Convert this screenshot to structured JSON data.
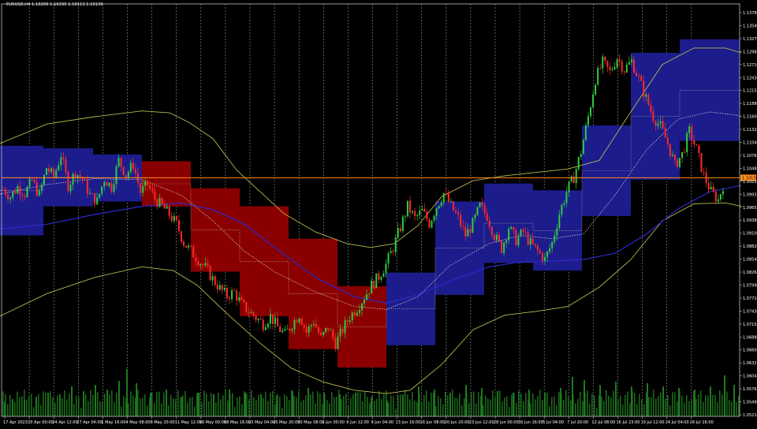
{
  "header": {
    "symbol_text": "EURUSD,H4  1.10206 1.10295 1.10113 1.10139"
  },
  "colors": {
    "background": "#000000",
    "frame": "#c0c0c0",
    "grid": "#9a9a9a",
    "bull_candle": "#2ecc40",
    "bear_candle": "#ff2a2a",
    "box_bull": "#1c1c8c",
    "box_bear": "#8a0000",
    "envelope": "#b8b84a",
    "ma_blue": "#2a2acc",
    "ma_white_dotted": "#e0e0e0",
    "volume": "#1e7a1e",
    "price_line": "#ff8c1a",
    "axis_text": "#ffffff"
  },
  "current_price_label": "1.10139",
  "chart_data": {
    "type": "candlestick",
    "ylim": [
      1.0521,
      1.1373
    ],
    "y_ticks": [
      "1.13780",
      "1.13540",
      "1.13270",
      "1.12985",
      "1.12710",
      "1.12430",
      "1.12155",
      "1.11880",
      "1.11600",
      "1.11320",
      "1.11040",
      "1.10765",
      "1.10485",
      "1.10210",
      "1.09935",
      "1.09655",
      "1.09380",
      "1.09100",
      "1.08820",
      "1.08545",
      "1.08265",
      "1.07990",
      "1.07710",
      "1.07430",
      "1.07155",
      "1.06880",
      "1.06600",
      "1.06325",
      "1.06045",
      "1.05765",
      "1.05490",
      "1.05210"
    ],
    "x_ticks": [
      "17 Apr 2023",
      "20 Apr 00:00",
      "24 Apr 12:00",
      "27 Apr 04:00",
      "1 May 16:00",
      "4 May 08:00",
      "8 May 20:00",
      "11 May 12:00",
      "16 May 00:00",
      "18 May 16:00",
      "23 May 04:00",
      "25 May 20:00",
      "30 May 08:00",
      "2 Jun 00:00",
      "6 Jun 12:00",
      "9 Jun 04:00",
      "13 Jun 16:00",
      "16 Jun 08:00",
      "20 Jun 20:00",
      "23 Jun 12:00",
      "28 Jun 00:00",
      "30 Jun 16:00",
      "5 Jul 04:00",
      "7 Jul 20:00",
      "12 Jul 08:00",
      "16 Jul 23:00",
      "19 Jul 12:00",
      "24 Jul 04:00",
      "26 Jul 16:00"
    ],
    "close_path": [
      1.099,
      1.0975,
      1.0995,
      1.0982,
      1.1008,
      1.0978,
      1.1035,
      1.1015,
      1.1062,
      1.0998,
      1.1025,
      1.1012,
      1.0978,
      1.0965,
      1.1012,
      1.0995,
      1.105,
      1.102,
      1.1042,
      1.0985,
      1.1,
      1.097,
      1.0955,
      1.0938,
      1.0918,
      1.088,
      1.0862,
      1.0845,
      1.0828,
      1.0805,
      1.0785,
      1.077,
      1.0778,
      1.0752,
      1.0738,
      1.0725,
      1.0712,
      1.0728,
      1.0705,
      1.069,
      1.0712,
      1.0732,
      1.0695,
      1.0718,
      1.0682,
      1.0705,
      1.0672,
      1.07,
      1.0728,
      1.0745,
      1.0768,
      1.0792,
      1.081,
      1.0835,
      1.087,
      1.0912,
      1.0955,
      1.093,
      1.0945,
      1.092,
      1.0955,
      1.0982,
      1.0955,
      1.093,
      1.0895,
      1.0918,
      1.0955,
      1.0935,
      1.0895,
      1.0868,
      1.0912,
      1.0885,
      1.0902,
      1.0878,
      1.0862,
      1.0845,
      1.088,
      1.094,
      1.0985,
      1.1015,
      1.1068,
      1.114,
      1.1218,
      1.1252,
      1.1232,
      1.1262,
      1.1238,
      1.1255,
      1.1218,
      1.1178,
      1.114,
      1.112,
      1.1085,
      1.104,
      1.1062,
      1.111,
      1.1072,
      1.1018,
      1.0985,
      1.0968,
      1.1014
    ],
    "boxes": [
      {
        "start": 0,
        "end": 55,
        "top": 1.108,
        "bottom": 1.0895,
        "dir": "bull"
      },
      {
        "start": 55,
        "end": 118,
        "top": 1.1075,
        "bottom": 1.0955,
        "dir": "bull"
      },
      {
        "start": 118,
        "end": 180,
        "top": 1.1062,
        "bottom": 1.0965,
        "dir": "bull"
      },
      {
        "start": 180,
        "end": 242,
        "top": 1.1048,
        "bottom": 1.0955,
        "dir": "bear"
      },
      {
        "start": 242,
        "end": 304,
        "top": 1.0992,
        "bottom": 1.082,
        "dir": "bear"
      },
      {
        "start": 304,
        "end": 366,
        "top": 1.0955,
        "bottom": 1.0728,
        "dir": "bear"
      },
      {
        "start": 366,
        "end": 428,
        "top": 1.0888,
        "bottom": 1.066,
        "dir": "bear"
      },
      {
        "start": 428,
        "end": 490,
        "top": 1.079,
        "bottom": 1.0622,
        "dir": "bear"
      },
      {
        "start": 490,
        "end": 552,
        "top": 1.0818,
        "bottom": 1.0668,
        "dir": "bull"
      },
      {
        "start": 552,
        "end": 614,
        "top": 1.0965,
        "bottom": 1.0772,
        "dir": "bull"
      },
      {
        "start": 614,
        "end": 676,
        "top": 1.1002,
        "bottom": 1.0838,
        "dir": "bull"
      },
      {
        "start": 676,
        "end": 738,
        "top": 1.0988,
        "bottom": 1.0822,
        "dir": "bull"
      },
      {
        "start": 738,
        "end": 800,
        "top": 1.1122,
        "bottom": 1.0935,
        "dir": "bull"
      },
      {
        "start": 800,
        "end": 862,
        "top": 1.1272,
        "bottom": 1.101,
        "dir": "bull"
      },
      {
        "start": 862,
        "end": 938,
        "top": 1.13,
        "bottom": 1.109,
        "dir": "bull"
      }
    ],
    "envelope_upper": [
      [
        0,
        1.1085
      ],
      [
        60,
        1.1125
      ],
      [
        120,
        1.114
      ],
      [
        180,
        1.1152
      ],
      [
        215,
        1.1148
      ],
      [
        240,
        1.1128
      ],
      [
        270,
        1.1095
      ],
      [
        300,
        1.103
      ],
      [
        330,
        1.0985
      ],
      [
        360,
        1.094
      ],
      [
        400,
        1.0902
      ],
      [
        440,
        1.0878
      ],
      [
        470,
        1.087
      ],
      [
        500,
        1.0878
      ],
      [
        530,
        1.0915
      ],
      [
        560,
        1.0975
      ],
      [
        600,
        1.1008
      ],
      [
        640,
        1.1018
      ],
      [
        680,
        1.1025
      ],
      [
        720,
        1.1032
      ],
      [
        760,
        1.105
      ],
      [
        800,
        1.115
      ],
      [
        840,
        1.1248
      ],
      [
        880,
        1.1282
      ],
      [
        920,
        1.1282
      ],
      [
        940,
        1.1272
      ]
    ],
    "envelope_lower": [
      [
        0,
        1.0728
      ],
      [
        60,
        1.0775
      ],
      [
        120,
        1.0808
      ],
      [
        180,
        1.083
      ],
      [
        220,
        1.0822
      ],
      [
        250,
        1.0792
      ],
      [
        290,
        1.073
      ],
      [
        330,
        1.0672
      ],
      [
        370,
        1.062
      ],
      [
        410,
        1.0592
      ],
      [
        450,
        1.0575
      ],
      [
        490,
        1.0568
      ],
      [
        520,
        1.0575
      ],
      [
        560,
        1.0628
      ],
      [
        600,
        1.07
      ],
      [
        640,
        1.073
      ],
      [
        680,
        1.0738
      ],
      [
        720,
        1.0748
      ],
      [
        760,
        1.0788
      ],
      [
        800,
        1.0845
      ],
      [
        840,
        1.0925
      ],
      [
        880,
        1.096
      ],
      [
        920,
        1.0962
      ],
      [
        940,
        1.0955
      ]
    ],
    "ma_blue": [
      [
        0,
        1.0908
      ],
      [
        60,
        1.0918
      ],
      [
        120,
        1.0938
      ],
      [
        180,
        1.0955
      ],
      [
        230,
        1.0962
      ],
      [
        270,
        1.0948
      ],
      [
        310,
        1.0918
      ],
      [
        350,
        1.0868
      ],
      [
        400,
        1.0808
      ],
      [
        450,
        1.0768
      ],
      [
        490,
        1.0755
      ],
      [
        530,
        1.0772
      ],
      [
        570,
        1.08
      ],
      [
        620,
        1.083
      ],
      [
        660,
        1.084
      ],
      [
        700,
        1.0842
      ],
      [
        740,
        1.0845
      ],
      [
        780,
        1.0858
      ],
      [
        820,
        1.0898
      ],
      [
        860,
        1.095
      ],
      [
        900,
        1.0985
      ],
      [
        940,
        1.0998
      ]
    ],
    "ma_white": [
      [
        0,
        1.098
      ],
      [
        60,
        1.1
      ],
      [
        120,
        1.1012
      ],
      [
        180,
        1.101
      ],
      [
        230,
        1.0978
      ],
      [
        270,
        1.0925
      ],
      [
        310,
        1.0862
      ],
      [
        350,
        1.0818
      ],
      [
        400,
        1.0778
      ],
      [
        450,
        1.0748
      ],
      [
        490,
        1.0742
      ],
      [
        530,
        1.0768
      ],
      [
        570,
        1.0832
      ],
      [
        620,
        1.0878
      ],
      [
        660,
        1.0895
      ],
      [
        700,
        1.0888
      ],
      [
        740,
        1.0898
      ],
      [
        780,
        1.0978
      ],
      [
        820,
        1.1072
      ],
      [
        860,
        1.1135
      ],
      [
        900,
        1.115
      ],
      [
        940,
        1.1142
      ]
    ],
    "volume_bars": [
      [
        5,
        18
      ],
      [
        15,
        22
      ],
      [
        30,
        20
      ],
      [
        45,
        25
      ],
      [
        60,
        30
      ],
      [
        75,
        28
      ],
      [
        90,
        38
      ],
      [
        105,
        32
      ],
      [
        120,
        40
      ],
      [
        135,
        34
      ],
      [
        150,
        45
      ],
      [
        160,
        60
      ],
      [
        172,
        42
      ],
      [
        190,
        30
      ],
      [
        210,
        34
      ],
      [
        230,
        25
      ],
      [
        250,
        30
      ],
      [
        270,
        28
      ],
      [
        290,
        34
      ],
      [
        310,
        30
      ],
      [
        330,
        28
      ],
      [
        350,
        26
      ],
      [
        370,
        32
      ],
      [
        390,
        36
      ],
      [
        410,
        30
      ],
      [
        430,
        28
      ],
      [
        450,
        30
      ],
      [
        470,
        24
      ],
      [
        490,
        20
      ],
      [
        510,
        28
      ],
      [
        530,
        38
      ],
      [
        550,
        34
      ],
      [
        570,
        30
      ],
      [
        590,
        40
      ],
      [
        610,
        36
      ],
      [
        630,
        32
      ],
      [
        650,
        30
      ],
      [
        670,
        34
      ],
      [
        690,
        30
      ],
      [
        710,
        36
      ],
      [
        725,
        50
      ],
      [
        740,
        46
      ],
      [
        760,
        40
      ],
      [
        780,
        44
      ],
      [
        800,
        38
      ],
      [
        820,
        42
      ],
      [
        840,
        38
      ],
      [
        860,
        36
      ],
      [
        880,
        34
      ],
      [
        900,
        38
      ],
      [
        918,
        52
      ],
      [
        930,
        40
      ]
    ]
  }
}
